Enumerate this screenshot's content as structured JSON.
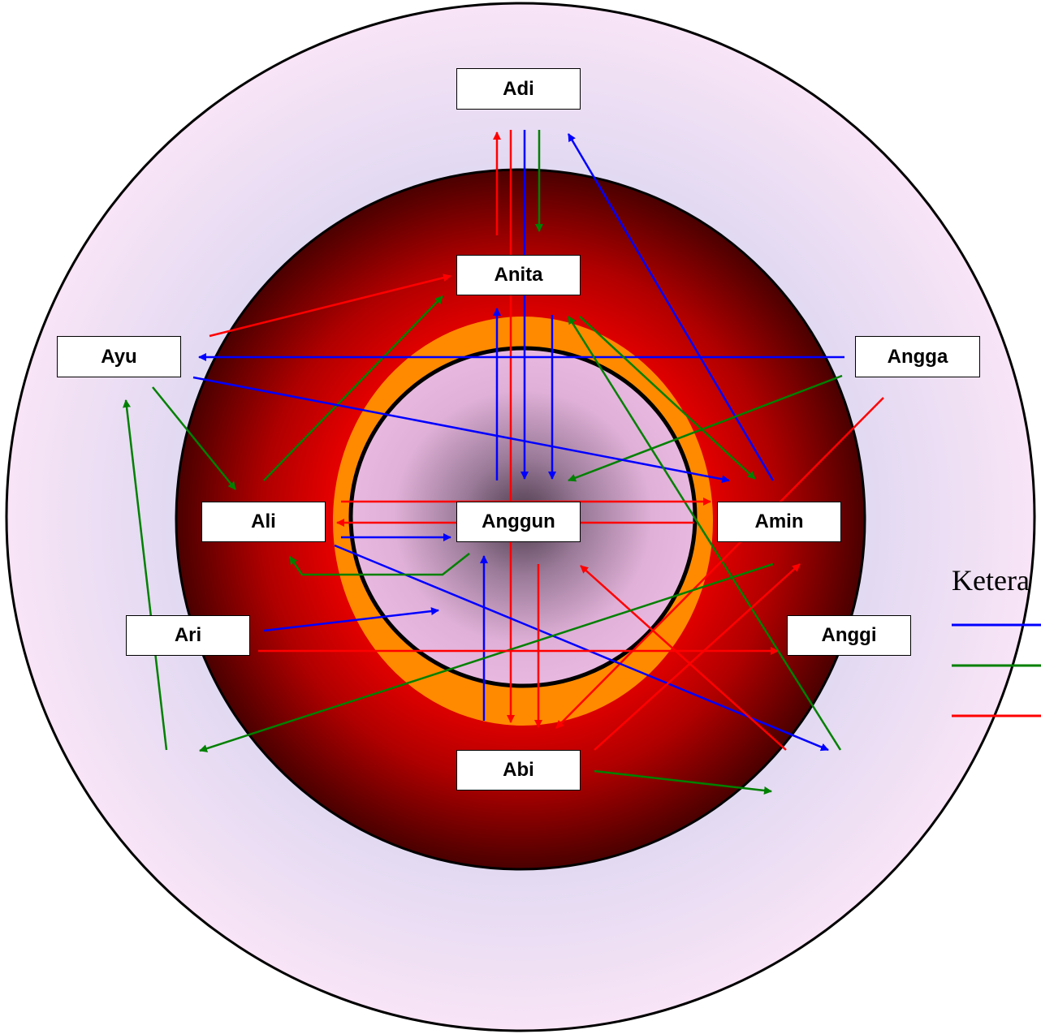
{
  "colors": {
    "blue": "#0000ff",
    "green": "#008000",
    "red": "#ff0000"
  },
  "names": {
    "adi": "Adi",
    "anita": "Anita",
    "ayu": "Ayu",
    "angga": "Angga",
    "ali": "Ali",
    "anggun": "Anggun",
    "amin": "Amin",
    "ari": "Ari",
    "abi": "Abi",
    "anggi": "Anggi"
  },
  "legend": {
    "title": "Ketera",
    "entries": [
      {
        "color": "#0000ff"
      },
      {
        "color": "#008000"
      },
      {
        "color": "#ff0000"
      }
    ]
  }
}
